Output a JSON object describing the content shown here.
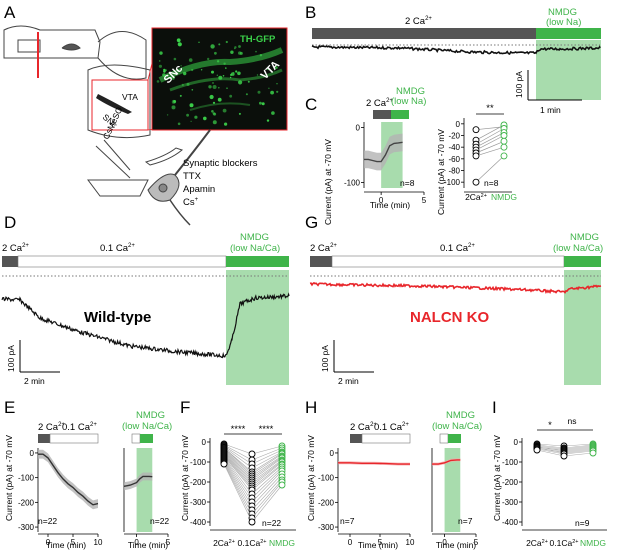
{
  "panel_labels": [
    "A",
    "B",
    "C",
    "D",
    "E",
    "F",
    "G",
    "H",
    "I"
  ],
  "colors": {
    "green": "#3fb44a",
    "green_shade": "#a8dcad",
    "red": "#e8262b",
    "red_shade": "#f4a7a9",
    "dark_bar": "#555555",
    "grey_shade": "#b3b3b3",
    "micrograph_bg": "#0b0f0b",
    "micrograph_fg": "#3bd14a"
  },
  "A": {
    "micrograph_label": "TH-GFP",
    "snc": "SNc",
    "vta": "VTA",
    "drug_1": "Synaptic blockers",
    "drug_2": "TTX",
    "drug_3": "Apamin",
    "drug_4": "Cs",
    "drug_4_sup": "+",
    "pipette_label": "CsMeSO",
    "pipette_sub": "3",
    "slice_snc": "SNc",
    "slice_vta": "VTA"
  },
  "B": {
    "bar_ca": "2 Ca",
    "ca_sup": "2+",
    "bar_nmdg_1": "NMDG",
    "bar_nmdg_2": "(low Na)",
    "scale_y": "100 pA",
    "scale_x": "1 min"
  },
  "C": {
    "ylabel": "Current (pA) at -70 mV",
    "xlabel": "Time (min)",
    "bar_ca": "2 Ca",
    "ca_sup": "2+",
    "bar_nmdg_1": "NMDG",
    "bar_nmdg_2": "(low Na)",
    "n_left": "n=8",
    "n_right": "n=8",
    "sig": "**",
    "cat_1": "2Ca",
    "cat_1_sup": "2+",
    "cat_2": "NMDG",
    "left_yticks": [
      "0",
      "-100"
    ],
    "left_xticks": [
      "0",
      "5"
    ],
    "right_yticks": [
      "0",
      "-20",
      "-40",
      "-60",
      "-80",
      "-100"
    ]
  },
  "D": {
    "bar_ca1": "2 Ca",
    "ca_sup": "2+",
    "bar_ca2": "0.1 Ca",
    "bar_nmdg_1": "NMDG",
    "bar_nmdg_2": "(low Na/Ca)",
    "trace_label": "Wild-type",
    "scale_y": "100 pA",
    "scale_x": "2 min"
  },
  "G": {
    "bar_ca1": "2 Ca",
    "ca_sup": "2+",
    "bar_ca2": "0.1 Ca",
    "bar_nmdg_1": "NMDG",
    "bar_nmdg_2": "(low Na/Ca)",
    "trace_label": "NALCN KO",
    "scale_y": "100 pA",
    "scale_x": "2 min"
  },
  "E": {
    "ylabel": "Current (pA) at -70 mV",
    "xlabel_1": "Time (min)",
    "xlabel_2": "Time (min)",
    "bar_ca1": "2 Ca",
    "ca_sup": "2+",
    "bar_ca2": "0.1 Ca",
    "bar_nmdg_1": "NMDG",
    "bar_nmdg_2": "(low Na/Ca)",
    "n_1": "n=22",
    "n_2": "n=22",
    "yticks": [
      "0",
      "-100",
      "-200",
      "-300"
    ],
    "xticks_1": [
      "0",
      "5",
      "10"
    ],
    "xticks_2": [
      "0",
      "5"
    ]
  },
  "F": {
    "ylabel": "Current (pA) at -70 mV",
    "sig_1": "****",
    "sig_2": "****",
    "n": "n=22",
    "cat_1": "2Ca",
    "cat_1_sup": "2+",
    "cat_2": "0.1Ca",
    "cat_2_sup": "2+",
    "cat_3": "NMDG",
    "yticks": [
      "0",
      "-100",
      "-200",
      "-300",
      "-400"
    ]
  },
  "H": {
    "ylabel": "Current (pA) at -70 mV",
    "xlabel_1": "Time (min)",
    "xlabel_2": "Time (min)",
    "bar_ca1": "2 Ca",
    "ca_sup": "2+",
    "bar_ca2": "0.1 Ca",
    "bar_nmdg_1": "NMDG",
    "bar_nmdg_2": "(low Na/Ca)",
    "n_1": "n=7",
    "n_2": "n=7",
    "yticks": [
      "0",
      "-100",
      "-200",
      "-300"
    ],
    "xticks_1": [
      "0",
      "5",
      "10"
    ],
    "xticks_2": [
      "0",
      "5"
    ]
  },
  "I": {
    "ylabel": "Current (pA) at -70 mV",
    "sig_1": "*",
    "sig_2": "ns",
    "n": "n=9",
    "cat_1": "2Ca",
    "cat_1_sup": "2+",
    "cat_2": "0.1Ca",
    "cat_2_sup": "2+",
    "cat_3": "NMDG",
    "yticks": [
      "0",
      "-100",
      "-200",
      "-300",
      "-400"
    ]
  },
  "chart_data": [
    {
      "panel": "C-left",
      "type": "line",
      "x": [
        -2,
        -1.5,
        -1,
        -0.5,
        0,
        0.5,
        1,
        1.5,
        2,
        2.5
      ],
      "series": [
        {
          "values": [
            -58,
            -58,
            -60,
            -62,
            -62,
            -50,
            -33,
            -29,
            -28,
            -27
          ]
        }
      ],
      "xlim": [
        -2,
        5
      ],
      "ylim": [
        -110,
        10
      ],
      "ylabel": "Current (pA) at -70 mV",
      "xlabel": "Time (min)"
    },
    {
      "panel": "C-right",
      "type": "scatter",
      "categories": [
        "2Ca2+",
        "NMDG"
      ],
      "paired_values": [
        [
          -10,
          -5
        ],
        [
          -28,
          -2
        ],
        [
          -35,
          -8
        ],
        [
          -40,
          -15
        ],
        [
          -45,
          -20
        ],
        [
          -50,
          -30
        ],
        [
          -55,
          -40
        ],
        [
          -100,
          -55
        ]
      ],
      "ylim": [
        -110,
        10
      ]
    },
    {
      "panel": "E-left",
      "type": "line",
      "x": [
        -2,
        -1,
        0,
        1,
        2,
        3,
        4,
        5,
        6,
        7,
        8,
        9,
        10
      ],
      "series": [
        {
          "values": [
            -5,
            -5,
            -20,
            -50,
            -80,
            -105,
            -125,
            -140,
            -160,
            -175,
            -195,
            -210,
            -205
          ]
        }
      ],
      "xlim": [
        -2,
        10
      ],
      "ylim": [
        -320,
        20
      ]
    },
    {
      "panel": "E-right",
      "type": "line",
      "x": [
        -2,
        -1,
        0,
        0.5,
        1,
        1.5,
        2,
        2.5
      ],
      "series": [
        {
          "values": [
            -135,
            -130,
            -120,
            -105,
            -95,
            -95,
            -95,
            -96
          ]
        }
      ],
      "xlim": [
        -2,
        5
      ],
      "ylim": [
        -320,
        20
      ]
    },
    {
      "panel": "F",
      "type": "scatter",
      "categories": [
        "2Ca2+",
        "0.1Ca2+",
        "NMDG"
      ],
      "triplets": [
        [
          -10,
          -60,
          -20
        ],
        [
          -15,
          -90,
          -30
        ],
        [
          -20,
          -110,
          -40
        ],
        [
          -25,
          -130,
          -50
        ],
        [
          -30,
          -150,
          -55
        ],
        [
          -30,
          -160,
          -60
        ],
        [
          -35,
          -170,
          -70
        ],
        [
          -40,
          -180,
          -75
        ],
        [
          -45,
          -190,
          -80
        ],
        [
          -50,
          -200,
          -90
        ],
        [
          -55,
          -210,
          -95
        ],
        [
          -60,
          -220,
          -100
        ],
        [
          -65,
          -230,
          -110
        ],
        [
          -70,
          -240,
          -115
        ],
        [
          -75,
          -260,
          -125
        ],
        [
          -80,
          -280,
          -135
        ],
        [
          -85,
          -300,
          -145
        ],
        [
          -90,
          -320,
          -160
        ],
        [
          -95,
          -340,
          -175
        ],
        [
          -100,
          -360,
          -190
        ],
        [
          -105,
          -380,
          -200
        ],
        [
          -110,
          -400,
          -215
        ]
      ],
      "ylim": [
        -420,
        20
      ]
    },
    {
      "panel": "H-left",
      "type": "line",
      "x": [
        -2,
        0,
        2,
        4,
        6,
        8,
        10
      ],
      "series": [
        {
          "values": [
            -40,
            -40,
            -42,
            -42,
            -43,
            -45,
            -45
          ]
        }
      ],
      "xlim": [
        -2,
        10
      ],
      "ylim": [
        -320,
        20
      ]
    },
    {
      "panel": "H-right",
      "type": "line",
      "x": [
        -2,
        -1,
        0,
        1,
        2,
        2.5
      ],
      "series": [
        {
          "values": [
            -45,
            -45,
            -40,
            -30,
            -28,
            -28
          ]
        }
      ],
      "xlim": [
        -2,
        5
      ],
      "ylim": [
        -320,
        20
      ]
    },
    {
      "panel": "I",
      "type": "scatter",
      "categories": [
        "2Ca2+",
        "0.1Ca2+",
        "NMDG"
      ],
      "triplets": [
        [
          -10,
          -20,
          -10
        ],
        [
          -15,
          -30,
          -15
        ],
        [
          -20,
          -35,
          -20
        ],
        [
          -25,
          -40,
          -25
        ],
        [
          -25,
          -45,
          -30
        ],
        [
          -30,
          -50,
          -35
        ],
        [
          -30,
          -55,
          -40
        ],
        [
          -35,
          -60,
          -45
        ],
        [
          -40,
          -70,
          -55
        ]
      ],
      "ylim": [
        -420,
        20
      ]
    }
  ]
}
